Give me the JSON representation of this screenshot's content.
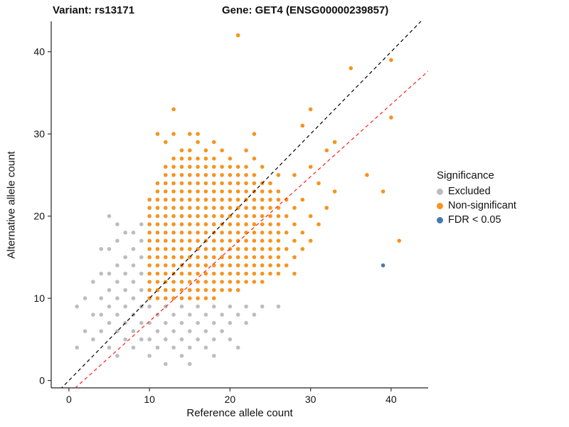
{
  "chart_data": {
    "type": "scatter",
    "title_left": "Variant: rs13171",
    "title_right": "Gene: GET4 (ENSG00000239857)",
    "xlabel": "Reference allele count",
    "ylabel": "Alternative allele count",
    "x_ticks": [
      0,
      10,
      20,
      30,
      40
    ],
    "y_ticks": [
      0,
      10,
      20,
      30,
      40
    ],
    "x_domain": [
      -2.2,
      44.6
    ],
    "y_domain": [
      -0.9,
      43.7
    ],
    "grid": false,
    "legend_position": "right",
    "lines": [
      {
        "name": "identity",
        "slope": 1,
        "intercept": 0,
        "color": "#000000",
        "dash": "5,4"
      },
      {
        "name": "fit",
        "slope": 0.88,
        "intercept": -1.6,
        "color": "#FF2020",
        "dash": "5,4"
      }
    ],
    "series": [
      {
        "name": "Excluded",
        "color": "#BDBDBD",
        "points": [
          [
            1,
            4
          ],
          [
            1,
            9
          ],
          [
            2,
            6
          ],
          [
            2,
            10
          ],
          [
            3,
            5
          ],
          [
            3,
            8
          ],
          [
            3,
            12
          ],
          [
            4,
            6
          ],
          [
            4,
            8
          ],
          [
            4,
            10
          ],
          [
            4,
            13
          ],
          [
            4,
            16
          ],
          [
            5,
            4
          ],
          [
            5,
            7
          ],
          [
            5,
            9
          ],
          [
            5,
            11
          ],
          [
            5,
            13
          ],
          [
            5,
            16
          ],
          [
            5,
            20
          ],
          [
            6,
            3
          ],
          [
            6,
            6
          ],
          [
            6,
            8
          ],
          [
            6,
            10
          ],
          [
            6,
            12
          ],
          [
            6,
            14
          ],
          [
            6,
            17
          ],
          [
            6,
            19
          ],
          [
            7,
            5
          ],
          [
            7,
            7
          ],
          [
            7,
            9
          ],
          [
            7,
            11
          ],
          [
            7,
            13
          ],
          [
            7,
            15
          ],
          [
            7,
            18
          ],
          [
            8,
            4
          ],
          [
            8,
            6
          ],
          [
            8,
            8
          ],
          [
            8,
            10
          ],
          [
            8,
            12
          ],
          [
            8,
            14
          ],
          [
            8,
            16
          ],
          [
            8,
            18
          ],
          [
            9,
            5
          ],
          [
            9,
            7
          ],
          [
            9,
            9
          ],
          [
            9,
            11
          ],
          [
            9,
            13
          ],
          [
            9,
            15
          ],
          [
            9,
            17
          ],
          [
            9,
            19
          ],
          [
            10,
            3
          ],
          [
            10,
            5
          ],
          [
            10,
            7
          ],
          [
            10,
            9
          ],
          [
            11,
            4
          ],
          [
            11,
            6
          ],
          [
            11,
            8
          ],
          [
            12,
            2
          ],
          [
            12,
            5
          ],
          [
            12,
            7
          ],
          [
            12,
            9
          ],
          [
            13,
            4
          ],
          [
            13,
            6
          ],
          [
            13,
            8
          ],
          [
            14,
            3
          ],
          [
            14,
            5
          ],
          [
            14,
            7
          ],
          [
            14,
            9
          ],
          [
            15,
            2
          ],
          [
            15,
            4
          ],
          [
            15,
            6
          ],
          [
            15,
            8
          ],
          [
            16,
            5
          ],
          [
            16,
            7
          ],
          [
            16,
            9
          ],
          [
            17,
            4
          ],
          [
            17,
            6
          ],
          [
            17,
            8
          ],
          [
            18,
            3
          ],
          [
            18,
            5
          ],
          [
            18,
            7
          ],
          [
            18,
            9
          ],
          [
            19,
            6
          ],
          [
            19,
            8
          ],
          [
            20,
            5
          ],
          [
            20,
            7
          ],
          [
            20,
            9
          ],
          [
            21,
            4
          ],
          [
            21,
            8
          ],
          [
            22,
            7
          ],
          [
            22,
            9
          ],
          [
            23,
            8
          ],
          [
            24,
            9
          ],
          [
            26,
            9
          ]
        ]
      },
      {
        "name": "Non-significant",
        "color": "#F59420",
        "rows": [
          [
            10,
            10,
            22
          ],
          [
            11,
            10,
            24
          ],
          [
            12,
            10,
            26
          ],
          [
            13,
            10,
            27
          ],
          [
            14,
            10,
            28
          ],
          [
            15,
            10,
            28
          ],
          [
            16,
            10,
            27
          ],
          [
            17,
            10,
            28
          ],
          [
            18,
            10,
            27
          ],
          [
            19,
            11,
            26
          ],
          [
            20,
            11,
            27
          ],
          [
            21,
            11,
            26
          ],
          [
            22,
            12,
            26
          ],
          [
            23,
            12,
            25
          ],
          [
            24,
            12,
            24
          ],
          [
            25,
            13,
            24
          ],
          [
            26,
            13,
            23
          ]
        ],
        "points": [
          [
            11,
            30
          ],
          [
            12,
            29
          ],
          [
            13,
            30
          ],
          [
            13,
            33
          ],
          [
            15,
            30
          ],
          [
            16,
            29
          ],
          [
            16,
            30
          ],
          [
            18,
            29
          ],
          [
            19,
            28
          ],
          [
            21,
            42
          ],
          [
            22,
            28
          ],
          [
            23,
            27
          ],
          [
            23,
            30
          ],
          [
            24,
            26
          ],
          [
            26,
            25
          ],
          [
            27,
            14
          ],
          [
            27,
            16
          ],
          [
            27,
            18
          ],
          [
            27,
            20
          ],
          [
            27,
            22
          ],
          [
            28,
            13
          ],
          [
            28,
            15
          ],
          [
            28,
            17
          ],
          [
            28,
            19
          ],
          [
            28,
            21
          ],
          [
            28,
            25
          ],
          [
            29,
            16
          ],
          [
            29,
            18
          ],
          [
            29,
            22
          ],
          [
            29,
            31
          ],
          [
            30,
            17
          ],
          [
            30,
            20
          ],
          [
            30,
            26
          ],
          [
            30,
            33
          ],
          [
            31,
            19
          ],
          [
            31,
            24
          ],
          [
            32,
            21
          ],
          [
            32,
            28
          ],
          [
            33,
            23
          ],
          [
            33,
            29
          ],
          [
            35,
            38
          ],
          [
            37,
            25
          ],
          [
            39,
            23
          ],
          [
            40,
            32
          ],
          [
            40,
            39
          ],
          [
            41,
            17
          ]
        ]
      },
      {
        "name": "FDR < 0.05",
        "color": "#4579AD",
        "points": [
          [
            39,
            14
          ]
        ]
      }
    ]
  },
  "legend": {
    "title": "Significance",
    "items": [
      {
        "label": "Excluded",
        "color": "#BDBDBD"
      },
      {
        "label": "Non-significant",
        "color": "#F59420"
      },
      {
        "label": "FDR < 0.05",
        "color": "#4579AD"
      }
    ]
  }
}
